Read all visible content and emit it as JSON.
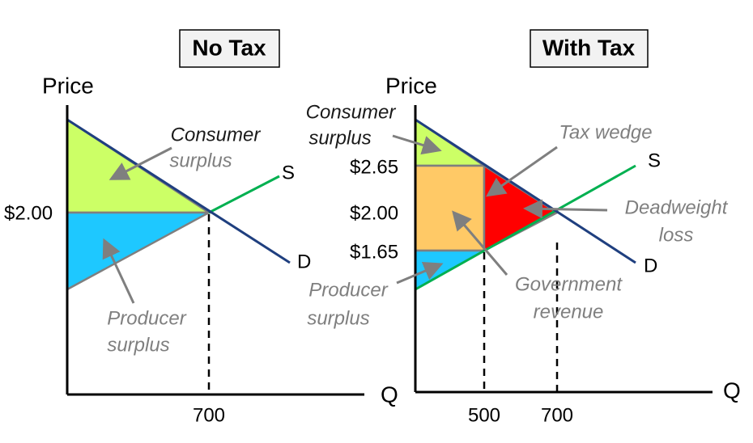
{
  "panels": [
    {
      "title": "No Tax",
      "y_axis_label": "Price",
      "x_axis_label": "Q",
      "price_labels": [
        "$2.00"
      ],
      "quantity_labels": [
        "700"
      ],
      "curve_labels": [
        "S",
        "D"
      ],
      "annotations": [
        [
          "Consumer",
          "surplus"
        ],
        [
          "Producer",
          "surplus"
        ]
      ]
    },
    {
      "title": "With Tax",
      "y_axis_label": "Price",
      "x_axis_label": "Q",
      "price_labels": [
        "$2.65",
        "$2.00",
        "$1.65"
      ],
      "quantity_labels": [
        "500",
        "700"
      ],
      "curve_labels": [
        "S",
        "D"
      ],
      "annotations": [
        [
          "Consumer",
          "surplus"
        ],
        [
          "Tax wedge"
        ],
        [
          "Deadweight",
          "loss"
        ],
        [
          "Government",
          "revenue"
        ],
        [
          "Producer",
          "surplus"
        ]
      ]
    }
  ]
}
